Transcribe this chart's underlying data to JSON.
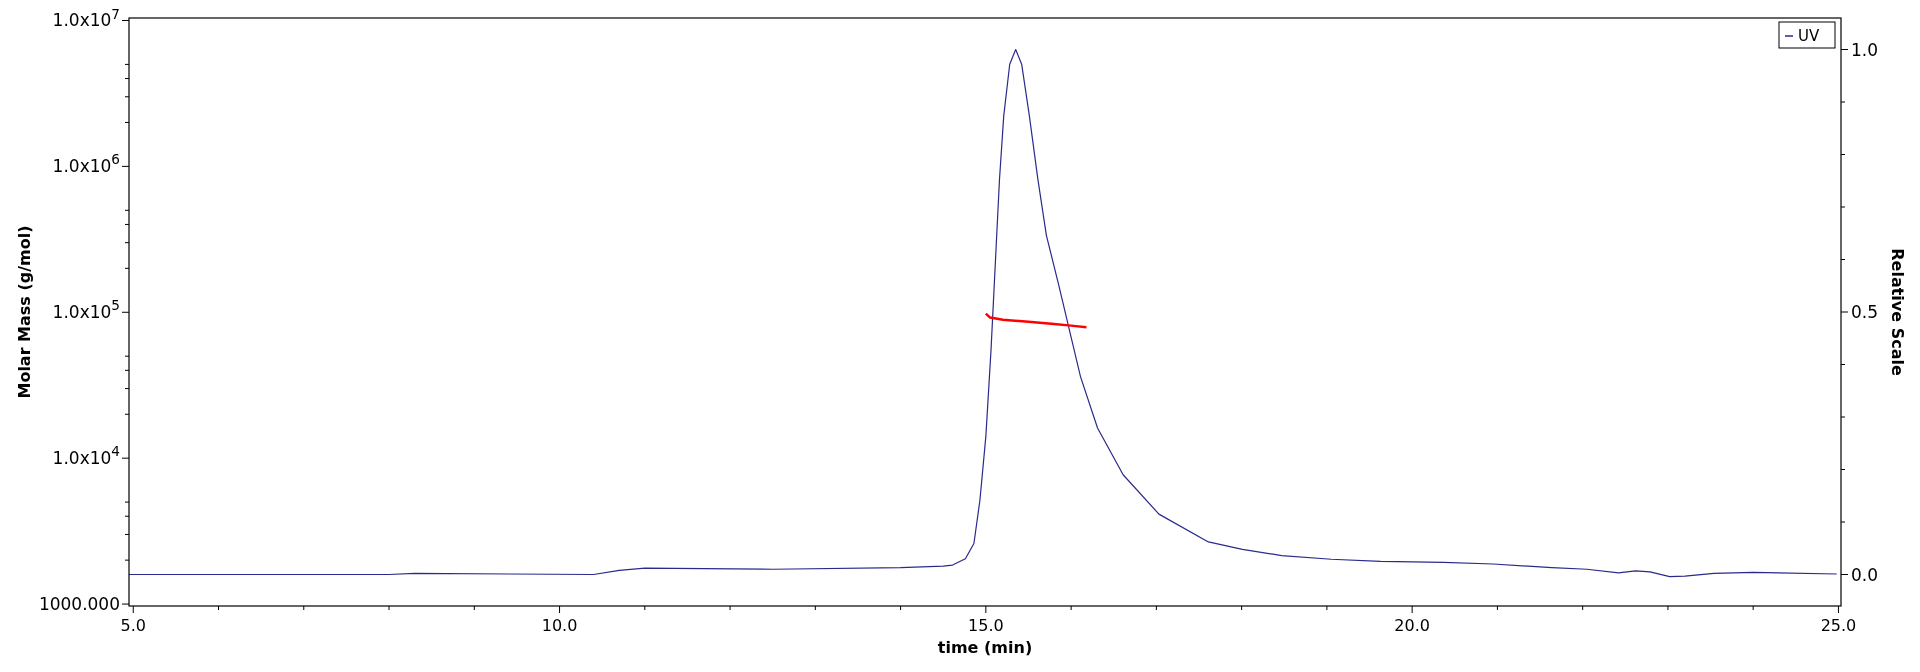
{
  "chart_data": {
    "type": "line",
    "xlabel": "time (min)",
    "ylabel": "Molar Mass (g/mol)",
    "y2label": "Relative Scale",
    "log": "y",
    "grid": false,
    "legend": "top right",
    "marker": "none",
    "line_style": "solid",
    "xlim": [
      4.95,
      25.03
    ],
    "xticks": [
      {
        "value": 5,
        "label": "5.0"
      },
      {
        "value": 6,
        "label": null
      },
      {
        "value": 7,
        "label": null
      },
      {
        "value": 8,
        "label": null
      },
      {
        "value": 9,
        "label": null
      },
      {
        "value": 10,
        "label": "10.0"
      },
      {
        "value": 11,
        "label": null
      },
      {
        "value": 12,
        "label": null
      },
      {
        "value": 13,
        "label": null
      },
      {
        "value": 14,
        "label": null
      },
      {
        "value": 15,
        "label": "15.0"
      },
      {
        "value": 16,
        "label": null
      },
      {
        "value": 17,
        "label": null
      },
      {
        "value": 18,
        "label": null
      },
      {
        "value": 19,
        "label": null
      },
      {
        "value": 20,
        "label": "20.0"
      },
      {
        "value": 21,
        "label": null
      },
      {
        "value": 22,
        "label": null
      },
      {
        "value": 23,
        "label": null
      },
      {
        "value": 24,
        "label": null
      },
      {
        "value": 25,
        "label": "25.0"
      }
    ],
    "ylim": [
      970,
      10400000
    ],
    "yticks": [
      {
        "value": 1000,
        "label": "1000.000"
      },
      {
        "value": 2000,
        "label": null
      },
      {
        "value": 3000,
        "label": null
      },
      {
        "value": 4000,
        "label": null
      },
      {
        "value": 5000,
        "label": null
      },
      {
        "value": 10000,
        "label": "1.0x10$^{4}$"
      },
      {
        "value": 20000,
        "label": null
      },
      {
        "value": 30000,
        "label": null
      },
      {
        "value": 40000,
        "label": null
      },
      {
        "value": 50000,
        "label": null
      },
      {
        "value": 100000,
        "label": "1.0x10$^{5}$"
      },
      {
        "value": 200000,
        "label": null
      },
      {
        "value": 300000,
        "label": null
      },
      {
        "value": 400000,
        "label": null
      },
      {
        "value": 500000,
        "label": null
      },
      {
        "value": 1000000,
        "label": "1.0x10$^{6}$"
      },
      {
        "value": 2000000,
        "label": null
      },
      {
        "value": 3000000,
        "label": null
      },
      {
        "value": 4000000,
        "label": null
      },
      {
        "value": 5000000,
        "label": null
      },
      {
        "value": 10000000,
        "label": "1.0x10$^{7}$"
      }
    ],
    "y2lim": [
      -0.06,
      1.06
    ],
    "y2ticks": [
      {
        "value": 0,
        "label": "0.0"
      },
      {
        "value": 0.1,
        "label": null
      },
      {
        "value": 0.2,
        "label": null
      },
      {
        "value": 0.3,
        "label": null
      },
      {
        "value": 0.4,
        "label": null
      },
      {
        "value": 0.5,
        "label": "0.5"
      },
      {
        "value": 0.6,
        "label": null
      },
      {
        "value": 0.7,
        "label": null
      },
      {
        "value": 0.8,
        "label": null
      },
      {
        "value": 0.9,
        "label": null
      },
      {
        "value": 1,
        "label": "1.0"
      }
    ],
    "series": [
      {
        "name": "UV",
        "color": "#2a2a8c",
        "axis": "y2",
        "x": [
          4.95,
          8.0,
          8.3,
          10.4,
          10.7,
          11.0,
          12.5,
          14.0,
          14.5,
          14.61,
          14.76,
          14.86,
          14.93,
          15.0,
          15.06,
          15.11,
          15.16,
          15.21,
          15.28,
          15.35,
          15.42,
          15.51,
          15.61,
          15.71,
          15.86,
          15.99,
          16.11,
          16.31,
          16.61,
          17.03,
          17.61,
          18.01,
          18.47,
          19.05,
          19.63,
          20.37,
          20.95,
          21.64,
          22.05,
          22.42,
          22.62,
          22.79,
          23.02,
          23.2,
          23.54,
          24.0,
          24.98
        ],
        "values": [
          0.0,
          0.0,
          0.002,
          0.0,
          0.008,
          0.012,
          0.01,
          0.013,
          0.016,
          0.018,
          0.03,
          0.059,
          0.141,
          0.263,
          0.426,
          0.589,
          0.753,
          0.874,
          0.972,
          1.0,
          0.972,
          0.874,
          0.753,
          0.646,
          0.548,
          0.459,
          0.377,
          0.279,
          0.19,
          0.115,
          0.062,
          0.048,
          0.036,
          0.029,
          0.025,
          0.023,
          0.02,
          0.013,
          0.01,
          0.003,
          0.007,
          0.005,
          -0.004,
          -0.003,
          0.002,
          0.004,
          0.001
        ]
      },
      {
        "color": "#ff0000",
        "x": [
          15.0,
          15.05,
          15.2,
          15.5,
          15.8,
          16.0,
          16.18
        ],
        "values": [
          98000,
          92000,
          89000,
          86000,
          83000,
          81000,
          79000
        ]
      }
    ]
  }
}
